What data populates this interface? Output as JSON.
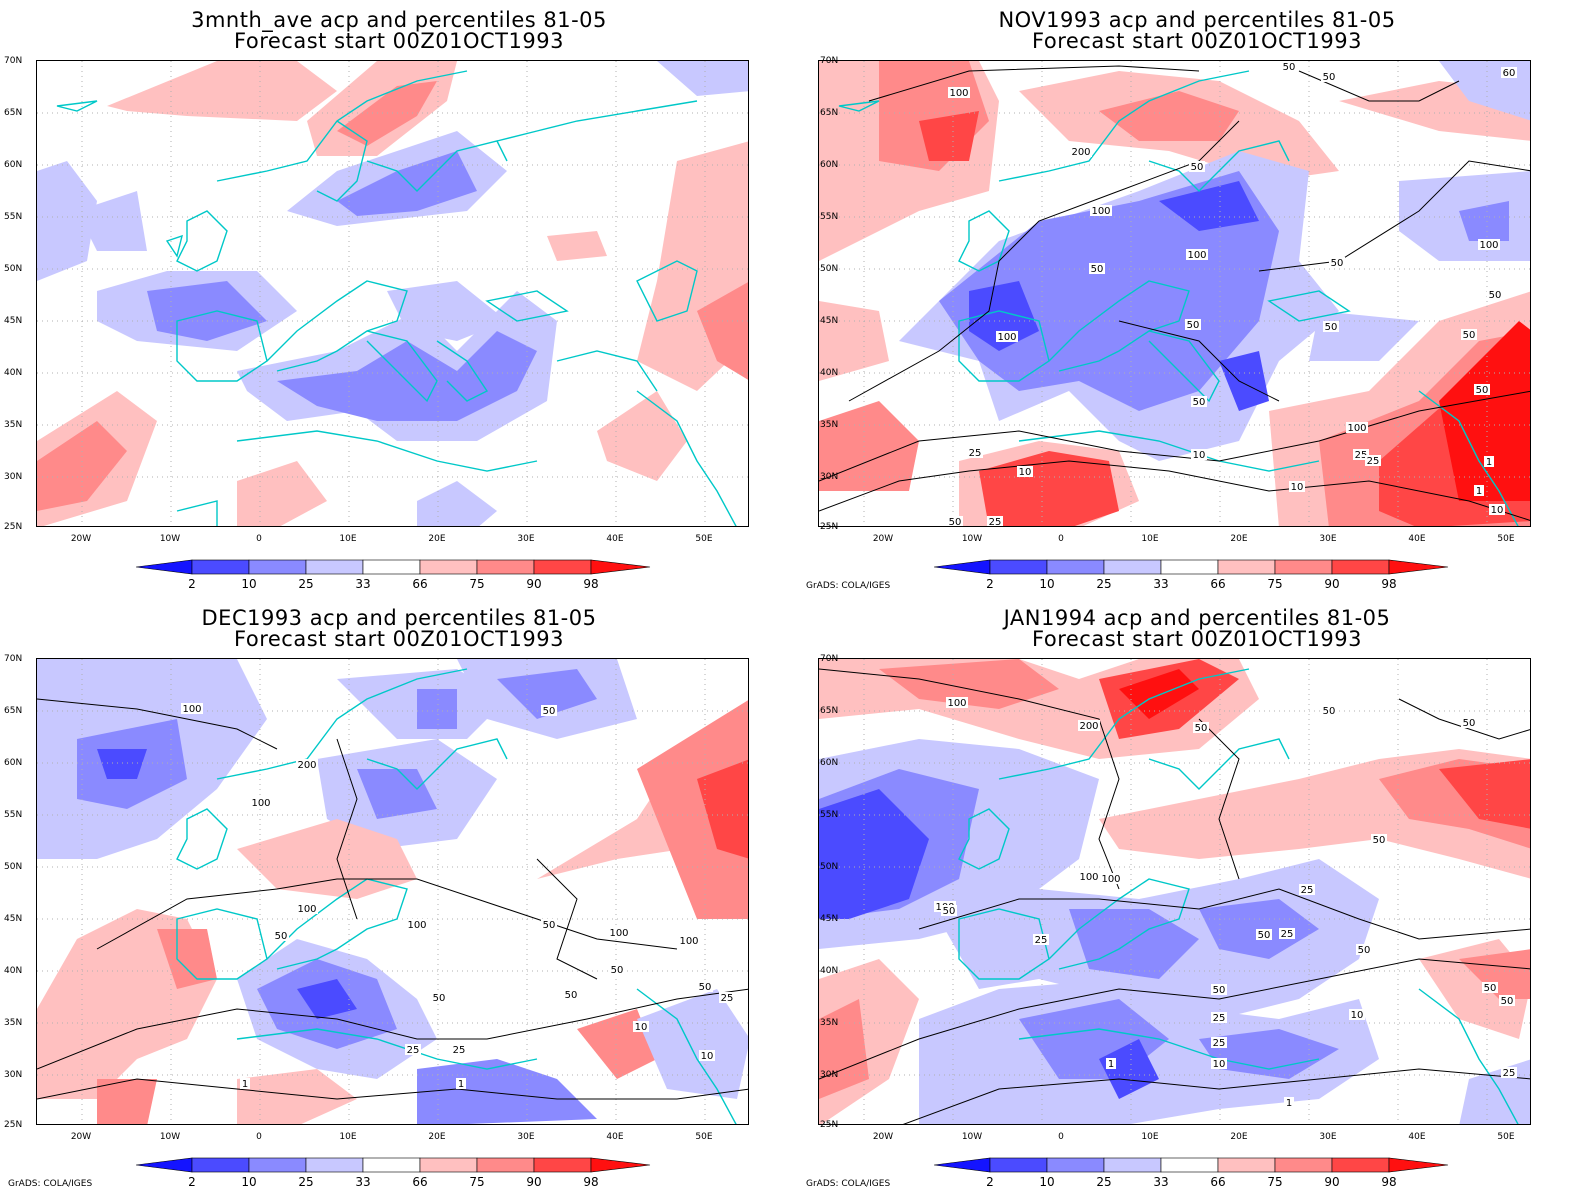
{
  "panels": [
    {
      "title": "3mnth_ave acp and percentiles 81-05",
      "subtitle": "Forecast start 00Z01OCT1993",
      "credit": ""
    },
    {
      "title": "NOV1993 acp and percentiles 81-05",
      "subtitle": "Forecast start 00Z01OCT1993",
      "credit": "GrADS: COLA/IGES"
    },
    {
      "title": "DEC1993 acp and percentiles 81-05",
      "subtitle": "Forecast start 00Z01OCT1993",
      "credit": "GrADS: COLA/IGES"
    },
    {
      "title": "JAN1994 acp and percentiles 81-05",
      "subtitle": "Forecast start 00Z01OCT1993",
      "credit": "GrADS: COLA/IGES"
    }
  ],
  "axes": {
    "lat_labels": [
      "70N",
      "65N",
      "60N",
      "55N",
      "50N",
      "45N",
      "40N",
      "35N",
      "30N",
      "25N"
    ],
    "lon_labels": [
      "20W",
      "10W",
      "0",
      "10E",
      "20E",
      "30E",
      "40E",
      "50E"
    ],
    "lon_range": [
      -25,
      55
    ],
    "lat_range": [
      25,
      70
    ]
  },
  "colorbar": {
    "labels": [
      "2",
      "10",
      "25",
      "33",
      "66",
      "75",
      "90",
      "98"
    ],
    "colors": [
      "#1414ff",
      "#4b4bff",
      "#8a8aff",
      "#c8c8ff",
      "#ffffff",
      "#ffc0c0",
      "#ff8a8a",
      "#ff4646",
      "#ff1010"
    ]
  },
  "contour_labels": {
    "nov": [
      "100",
      "50",
      "50",
      "60",
      "100",
      "200",
      "50",
      "100",
      "50",
      "100",
      "50",
      "50",
      "100",
      "50",
      "50",
      "50",
      "50",
      "100",
      "50",
      "25",
      "25",
      "10",
      "25",
      "10",
      "1",
      "10",
      "1",
      "50",
      "25",
      "10"
    ],
    "dec": [
      "100",
      "50",
      "200",
      "100",
      "100",
      "50",
      "100",
      "50",
      "100",
      "50",
      "100",
      "50",
      "25",
      "50",
      "50",
      "25",
      "10",
      "25",
      "10",
      "1",
      "1"
    ],
    "jan": [
      "100",
      "200",
      "50",
      "50",
      "50",
      "50",
      "100",
      "100",
      "100",
      "50",
      "25",
      "25",
      "50",
      "50",
      "50",
      "50",
      "25",
      "50",
      "25",
      "10",
      "1",
      "10",
      "1",
      "25",
      "25"
    ]
  },
  "colors": {
    "coastline": "#00c8c8",
    "contour": "#000000",
    "grid": "#b0b0b0"
  }
}
